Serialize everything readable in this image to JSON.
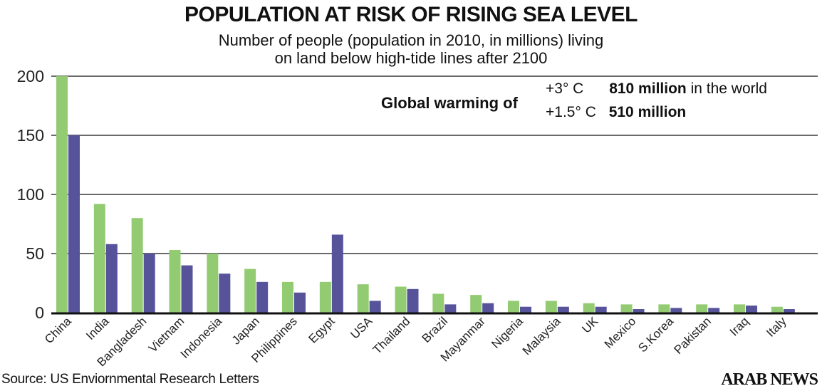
{
  "chart_data": {
    "type": "bar",
    "title": "POPULATION AT RISK OF RISING SEA LEVEL",
    "subtitle": "Number of people (population in 2010, in millions) living on land below high-tide lines after 2100",
    "xlabel": "",
    "ylabel": "",
    "ylim": [
      0,
      200
    ],
    "yticks": [
      0,
      50,
      100,
      150,
      200
    ],
    "grid": true,
    "categories": [
      "China",
      "India",
      "Bangladesh",
      "Vietnam",
      "Indonesia",
      "Japan",
      "Philippines",
      "Egypt",
      "USA",
      "Thailand",
      "Brazil",
      "Mayanmar",
      "Nigeria",
      "Malaysia",
      "UK",
      "Mexico",
      "S.Korea",
      "Pakistan",
      "Iraq",
      "Italy"
    ],
    "series": [
      {
        "name": "+3° C",
        "color": "#93cb72",
        "values": [
          200,
          92,
          80,
          53,
          50,
          37,
          26,
          26,
          24,
          22,
          16,
          15,
          10,
          10,
          8,
          7,
          7,
          7,
          7,
          5
        ]
      },
      {
        "name": "+1.5° C",
        "color": "#56539b",
        "values": [
          150,
          58,
          50,
          40,
          33,
          26,
          17,
          66,
          10,
          20,
          7,
          8,
          5,
          5,
          5,
          3,
          4,
          4,
          6,
          3
        ]
      }
    ]
  },
  "legend": {
    "label": "Global warming of",
    "rows": [
      {
        "scenario": "+3° C",
        "total": "810 million",
        "suffix": "in the world"
      },
      {
        "scenario": "+1.5° C",
        "total": "510 million",
        "suffix": ""
      }
    ]
  },
  "source": "Source: US Enviornmental Research Letters",
  "brand": "ARAB NEWS"
}
